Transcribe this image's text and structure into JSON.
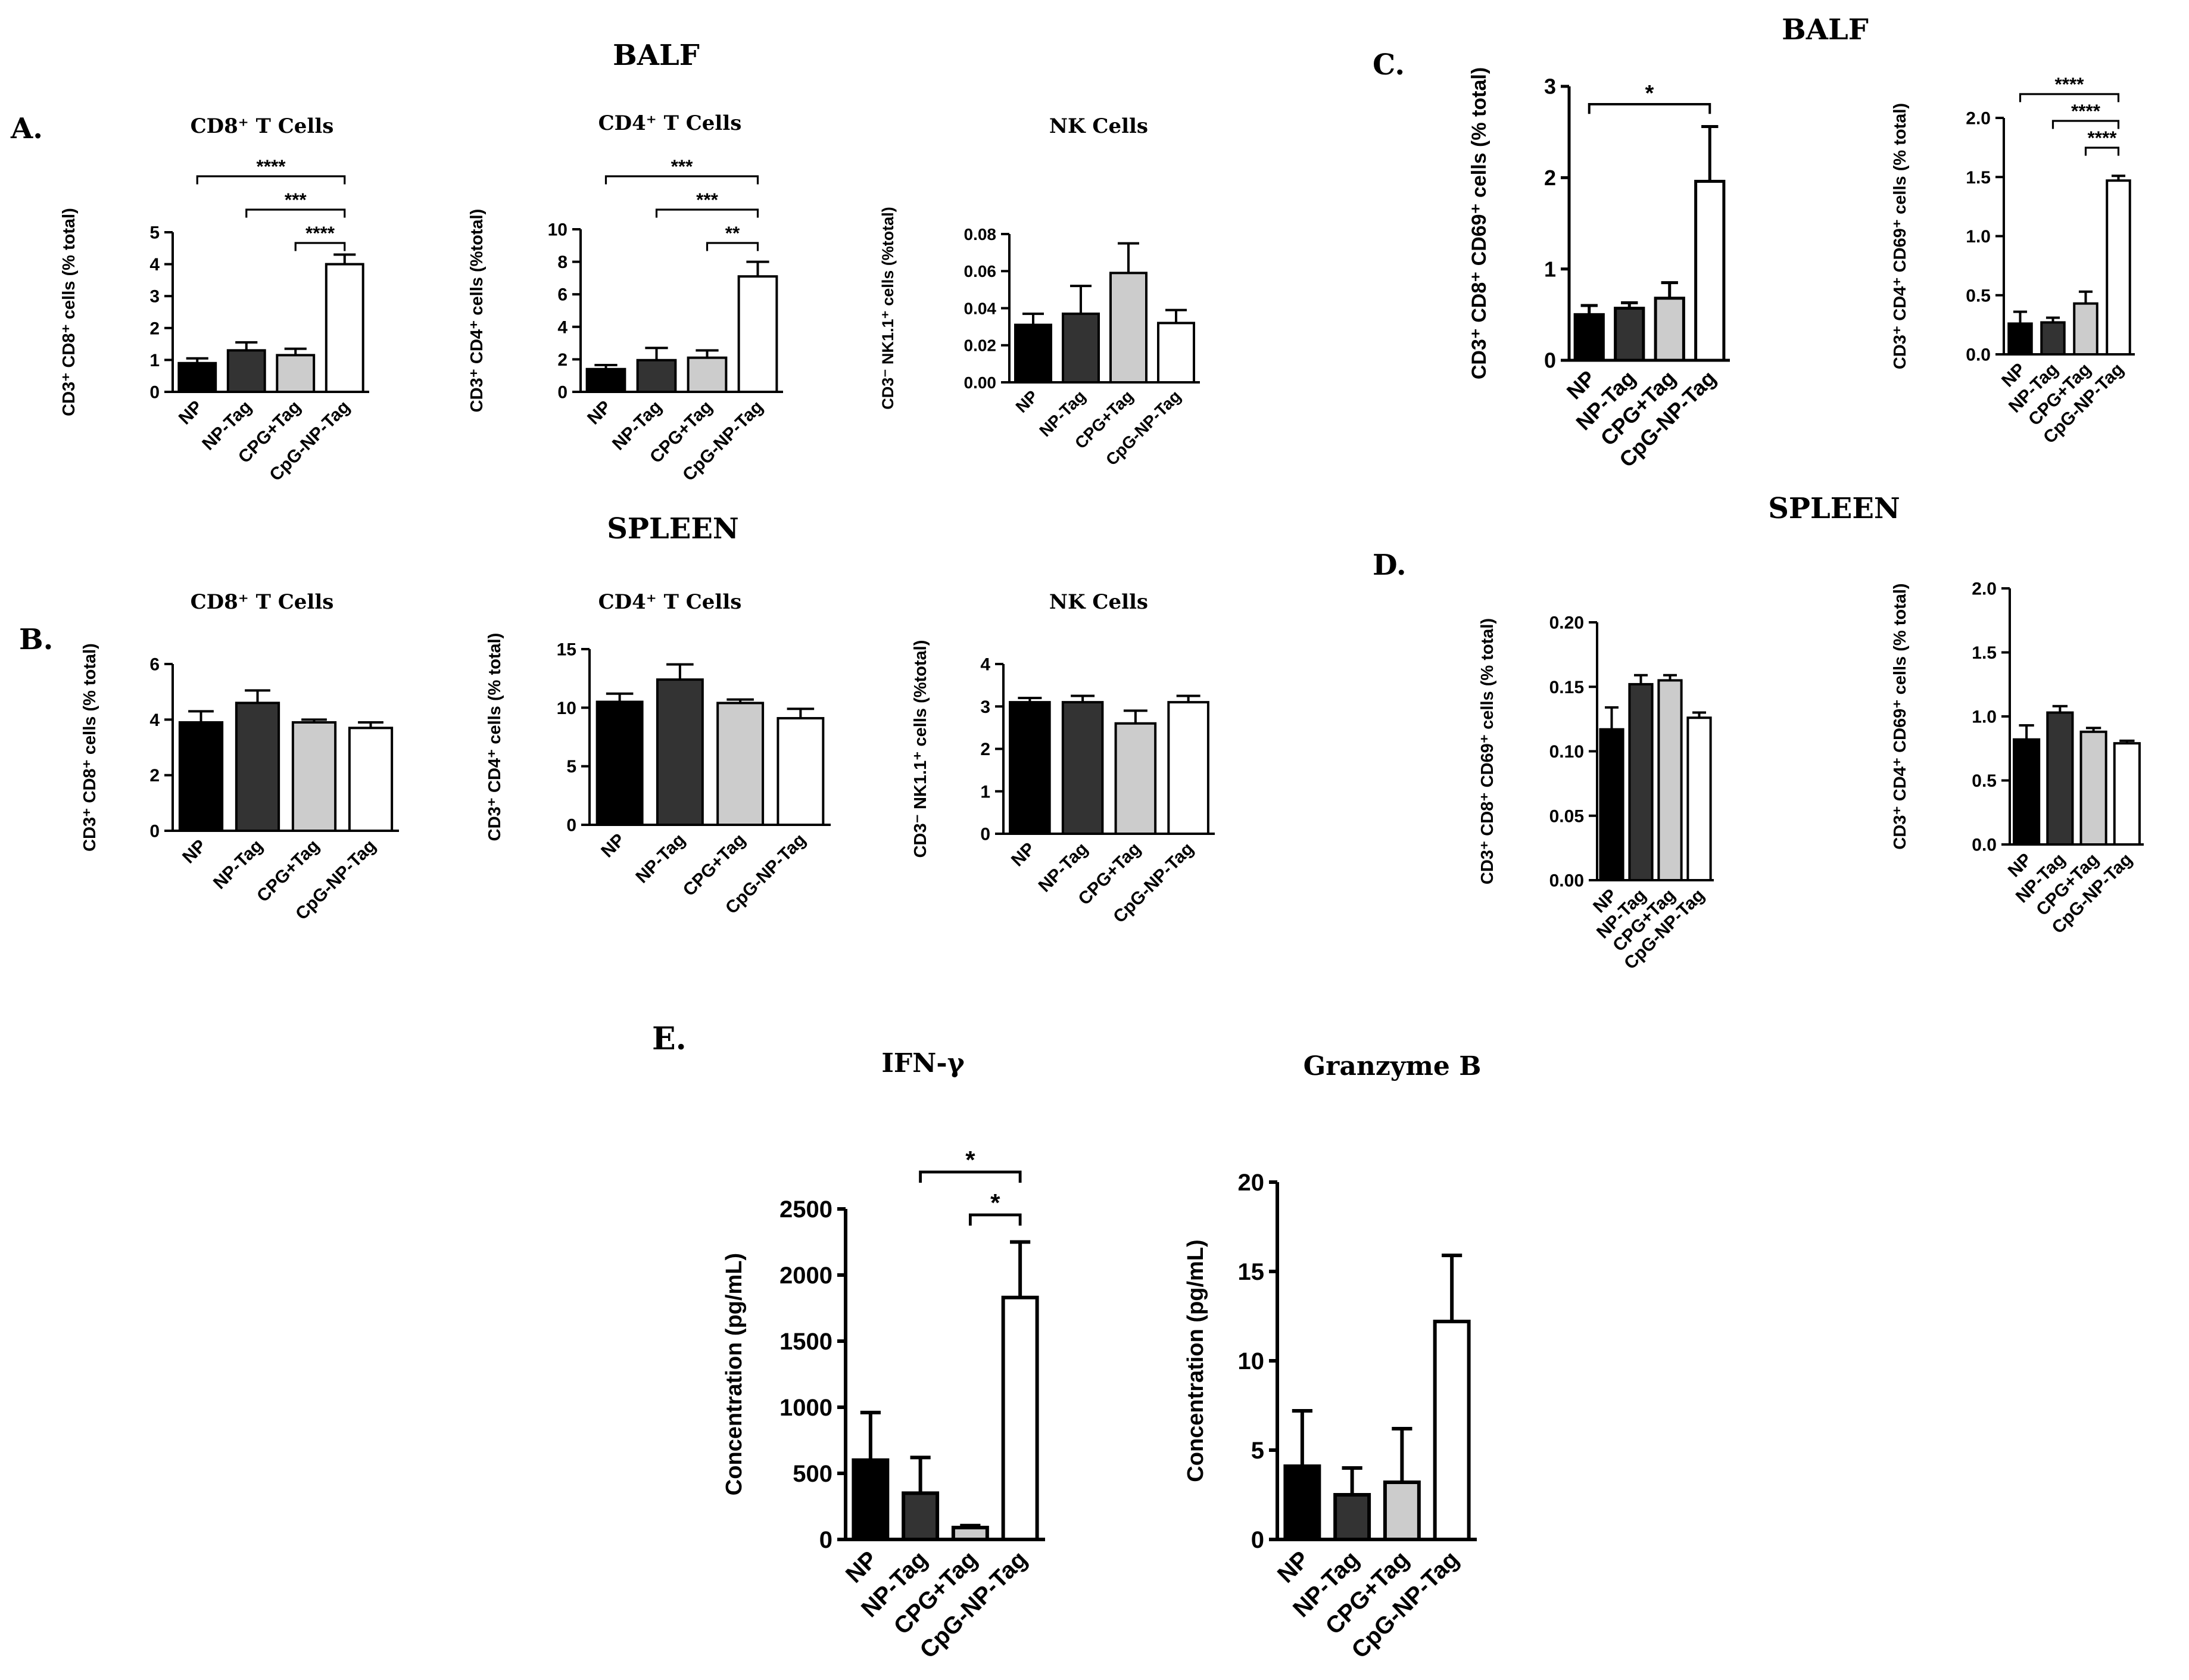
{
  "section_labels": [
    {
      "text": "BALF"
    },
    {
      "text": "SPLEEN"
    },
    {
      "text": "BALF"
    },
    {
      "text": "SPLEEN"
    }
  ],
  "panel_letters": [
    "A.",
    "B.",
    "C.",
    "D.",
    "E."
  ],
  "colors": {
    "NP": "#000000",
    "NP-Tag": "#333333",
    "CPG+Tag": "#cccccc",
    "CpG-NP-Tag": "#ffffff"
  },
  "chart_data": [
    {
      "id": "A1",
      "type": "bar",
      "title": "CD8⁺ T Cells",
      "ylabel": "CD3⁺ CD8⁺ cells (% total)",
      "categories": [
        "NP",
        "NP-Tag",
        "CPG+Tag",
        "CpG-NP-Tag"
      ],
      "values": [
        0.9,
        1.3,
        1.15,
        4.0
      ],
      "errors": [
        0.15,
        0.25,
        0.2,
        0.3
      ],
      "ylim": [
        0,
        5
      ],
      "yticks": [
        "0",
        "1",
        "2",
        "3",
        "4",
        "5"
      ],
      "significance": [
        {
          "from": 0,
          "to": 3,
          "label": "****"
        },
        {
          "from": 1,
          "to": 3,
          "label": "***"
        },
        {
          "from": 2,
          "to": 3,
          "label": "****"
        }
      ]
    },
    {
      "id": "A2",
      "type": "bar",
      "title": "CD4⁺ T Cells",
      "ylabel": "CD3⁺ CD4⁺ cells (%total)",
      "categories": [
        "NP",
        "NP-Tag",
        "CPG+Tag",
        "CpG-NP-Tag"
      ],
      "values": [
        1.4,
        1.95,
        2.1,
        7.1
      ],
      "errors": [
        0.25,
        0.75,
        0.45,
        0.9
      ],
      "ylim": [
        0,
        10
      ],
      "yticks": [
        "0",
        "2",
        "4",
        "6",
        "8",
        "10"
      ],
      "significance": [
        {
          "from": 0,
          "to": 3,
          "label": "***"
        },
        {
          "from": 1,
          "to": 3,
          "label": "***"
        },
        {
          "from": 2,
          "to": 3,
          "label": "**"
        }
      ]
    },
    {
      "id": "A3",
      "type": "bar",
      "title": "NK Cells",
      "ylabel": "CD3⁻ NK1.1⁺ cells (%total)",
      "categories": [
        "NP",
        "NP-Tag",
        "CPG+Tag",
        "CpG-NP-Tag"
      ],
      "values": [
        0.031,
        0.037,
        0.059,
        0.032
      ],
      "errors": [
        0.006,
        0.015,
        0.016,
        0.007
      ],
      "ylim": [
        0,
        0.08
      ],
      "yticks": [
        "0.00",
        "0.02",
        "0.04",
        "0.06",
        "0.08"
      ],
      "significance": []
    },
    {
      "id": "B1",
      "type": "bar",
      "title": "CD8⁺ T Cells",
      "ylabel": "CD3⁺ CD8⁺ cells (% total)",
      "categories": [
        "NP",
        "NP-Tag",
        "CPG+Tag",
        "CpG-NP-Tag"
      ],
      "values": [
        3.9,
        4.6,
        3.9,
        3.7
      ],
      "errors": [
        0.4,
        0.45,
        0.1,
        0.2
      ],
      "ylim": [
        0,
        6
      ],
      "yticks": [
        "0",
        "2",
        "4",
        "6"
      ],
      "significance": []
    },
    {
      "id": "B2",
      "type": "bar",
      "title": "CD4⁺ T Cells",
      "ylabel": "CD3⁺ CD4⁺ cells (% total)",
      "categories": [
        "NP",
        "NP-Tag",
        "CPG+Tag",
        "CpG-NP-Tag"
      ],
      "values": [
        10.5,
        12.4,
        10.4,
        9.1
      ],
      "errors": [
        0.7,
        1.3,
        0.3,
        0.8
      ],
      "ylim": [
        0,
        15
      ],
      "yticks": [
        "0",
        "5",
        "10",
        "15"
      ],
      "significance": []
    },
    {
      "id": "B3",
      "type": "bar",
      "title": "NK Cells",
      "ylabel": "CD3⁻ NK1.1⁺ cells (%total)",
      "categories": [
        "NP",
        "NP-Tag",
        "CPG+Tag",
        "CpG-NP-Tag"
      ],
      "values": [
        3.1,
        3.1,
        2.6,
        3.1
      ],
      "errors": [
        0.1,
        0.15,
        0.3,
        0.15
      ],
      "ylim": [
        0,
        4
      ],
      "yticks": [
        "0",
        "1",
        "2",
        "3",
        "4"
      ],
      "significance": []
    },
    {
      "id": "C1",
      "type": "bar",
      "title": "",
      "ylabel": "CD3⁺ CD8⁺ CD69⁺ cells (% total)",
      "categories": [
        "NP",
        "NP-Tag",
        "CPG+Tag",
        "CpG-NP-Tag"
      ],
      "values": [
        0.5,
        0.57,
        0.68,
        1.96
      ],
      "errors": [
        0.1,
        0.06,
        0.17,
        0.6
      ],
      "ylim": [
        0,
        3
      ],
      "yticks": [
        "0",
        "1",
        "2",
        "3"
      ],
      "significance": [
        {
          "from": 0,
          "to": 3,
          "label": "*"
        }
      ]
    },
    {
      "id": "C2",
      "type": "bar",
      "title": "",
      "ylabel": "CD3⁺ CD4⁺ CD69⁺ cells (% total)",
      "categories": [
        "NP",
        "NP-Tag",
        "CPG+Tag",
        "CpG-NP-Tag"
      ],
      "values": [
        0.26,
        0.27,
        0.43,
        1.47
      ],
      "errors": [
        0.1,
        0.04,
        0.1,
        0.04
      ],
      "ylim": [
        0,
        2
      ],
      "yticks": [
        "0.0",
        "0.5",
        "1.0",
        "1.5",
        "2.0"
      ],
      "significance": [
        {
          "from": 0,
          "to": 3,
          "label": "****"
        },
        {
          "from": 1,
          "to": 3,
          "label": "****"
        },
        {
          "from": 2,
          "to": 3,
          "label": "****"
        }
      ]
    },
    {
      "id": "D1",
      "type": "bar",
      "title": "",
      "ylabel": "CD3⁺ CD8⁺ CD69⁺ cells (% total)",
      "categories": [
        "NP",
        "NP-Tag",
        "CPG+Tag",
        "CpG-NP-Tag"
      ],
      "values": [
        0.117,
        0.152,
        0.155,
        0.126
      ],
      "errors": [
        0.017,
        0.007,
        0.004,
        0.004
      ],
      "ylim": [
        0,
        0.2
      ],
      "yticks": [
        "0.00",
        "0.05",
        "0.10",
        "0.15",
        "0.20"
      ],
      "significance": []
    },
    {
      "id": "D2",
      "type": "bar",
      "title": "",
      "ylabel": "CD3⁺ CD4⁺ CD69⁺ cells (% total)",
      "categories": [
        "NP",
        "NP-Tag",
        "CPG+Tag",
        "CpG-NP-Tag"
      ],
      "values": [
        0.82,
        1.03,
        0.88,
        0.79
      ],
      "errors": [
        0.11,
        0.05,
        0.03,
        0.02
      ],
      "ylim": [
        0,
        2
      ],
      "yticks": [
        "0.0",
        "0.5",
        "1.0",
        "1.5",
        "2.0"
      ],
      "significance": []
    },
    {
      "id": "E1",
      "type": "bar",
      "title": "IFN-γ",
      "ylabel": "Concentration (pg/mL)",
      "categories": [
        "NP",
        "NP-Tag",
        "CPG+Tag",
        "CpG-NP-Tag"
      ],
      "values": [
        600,
        350,
        90,
        1830
      ],
      "errors": [
        360,
        270,
        15,
        420
      ],
      "ylim": [
        0,
        2500
      ],
      "yticks": [
        "0",
        "500",
        "1000",
        "1500",
        "2000",
        "2500"
      ],
      "significance": [
        {
          "from": 1,
          "to": 3,
          "label": "*"
        },
        {
          "from": 2,
          "to": 3,
          "label": "*"
        }
      ]
    },
    {
      "id": "E2",
      "type": "bar",
      "title": "Granzyme B",
      "ylabel": "Concentration (pg/mL)",
      "categories": [
        "NP",
        "NP-Tag",
        "CPG+Tag",
        "CpG-NP-Tag"
      ],
      "values": [
        4.1,
        2.5,
        3.2,
        12.2
      ],
      "errors": [
        3.1,
        1.5,
        3.0,
        3.7
      ],
      "ylim": [
        0,
        20
      ],
      "yticks": [
        "0",
        "5",
        "10",
        "15",
        "20"
      ],
      "significance": []
    }
  ]
}
